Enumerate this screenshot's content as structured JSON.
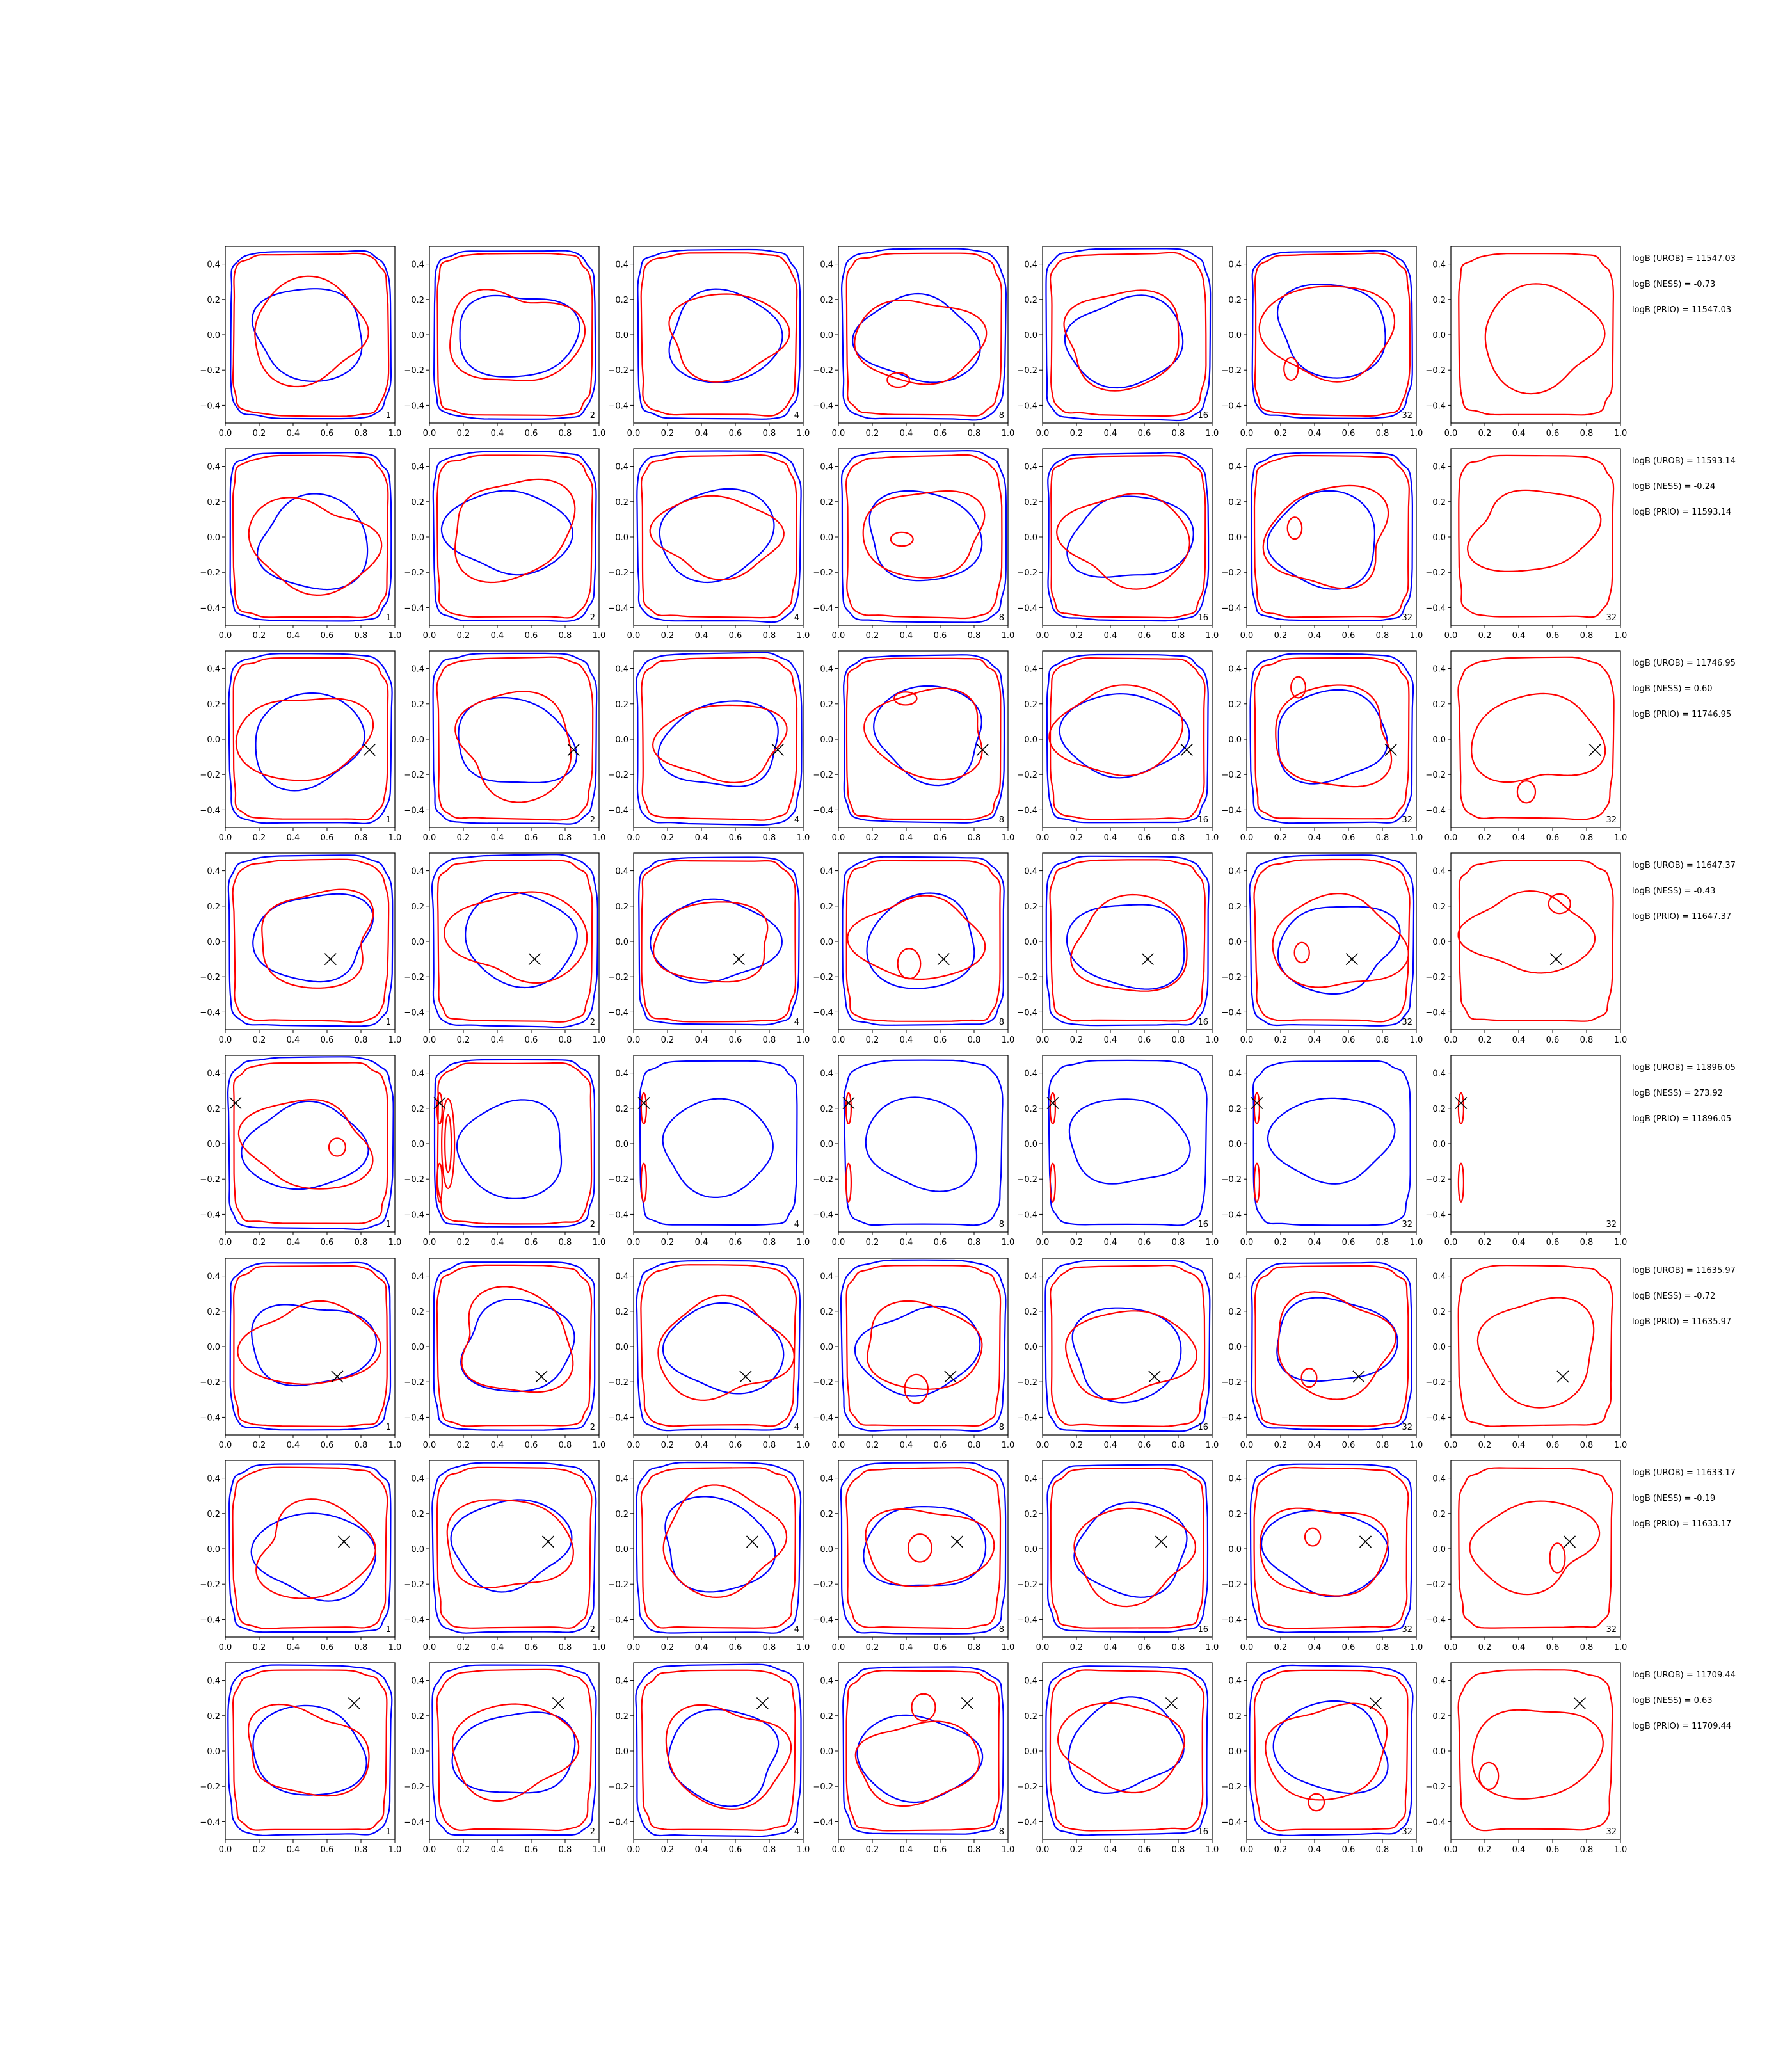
{
  "chart_data": {
    "type": "contour-grid",
    "layout": {
      "rows": 8,
      "cols": 7
    },
    "xlim": [
      0.0,
      1.0
    ],
    "ylim": [
      -0.5,
      0.5
    ],
    "x_ticks": [
      "0.0",
      "0.2",
      "0.4",
      "0.6",
      "0.8",
      "1.0"
    ],
    "y_ticks": [
      "0.4",
      "0.2",
      "0.0",
      "−0.2",
      "−0.4"
    ],
    "column_labels": [
      "1",
      "2",
      "4",
      "8",
      "16",
      "32",
      "32"
    ],
    "colors": {
      "series_a": "#0000ff",
      "series_b": "#ff0000",
      "marker": "#000000"
    },
    "rows": [
      {
        "marker": null,
        "logB_UROB": "logB (UROB) = 11547.03",
        "logB_NESS": "logB (NESS) = -0.73",
        "logB_PRIO": "logB (PRIO) = 11547.03"
      },
      {
        "marker": null,
        "logB_UROB": "logB (UROB) = 11593.14",
        "logB_NESS": "logB (NESS) = -0.24",
        "logB_PRIO": "logB (PRIO) = 11593.14"
      },
      {
        "marker": [
          0.85,
          -0.06
        ],
        "logB_UROB": "logB (UROB) = 11746.95",
        "logB_NESS": "logB (NESS) = 0.60",
        "logB_PRIO": "logB (PRIO) = 11746.95"
      },
      {
        "marker": [
          0.62,
          -0.1
        ],
        "logB_UROB": "logB (UROB) = 11647.37",
        "logB_NESS": "logB (NESS) = -0.43",
        "logB_PRIO": "logB (PRIO) = 11647.37"
      },
      {
        "marker": [
          0.06,
          0.23
        ],
        "logB_UROB": "logB (UROB) = 11896.05",
        "logB_NESS": "logB (NESS) = 273.92",
        "logB_PRIO": "logB (PRIO) = 11896.05"
      },
      {
        "marker": [
          0.66,
          -0.17
        ],
        "logB_UROB": "logB (UROB) = 11635.97",
        "logB_NESS": "logB (NESS) = -0.72",
        "logB_PRIO": "logB (PRIO) = 11635.97"
      },
      {
        "marker": [
          0.7,
          0.04
        ],
        "logB_UROB": "logB (UROB) = 11633.17",
        "logB_NESS": "logB (NESS) = -0.19",
        "logB_PRIO": "logB (PRIO) = 11633.17"
      },
      {
        "marker": [
          0.76,
          0.27
        ],
        "logB_UROB": "logB (UROB) = 11709.44",
        "logB_NESS": "logB (NESS) = 0.63",
        "logB_PRIO": "logB (PRIO) = 11709.44"
      }
    ]
  }
}
